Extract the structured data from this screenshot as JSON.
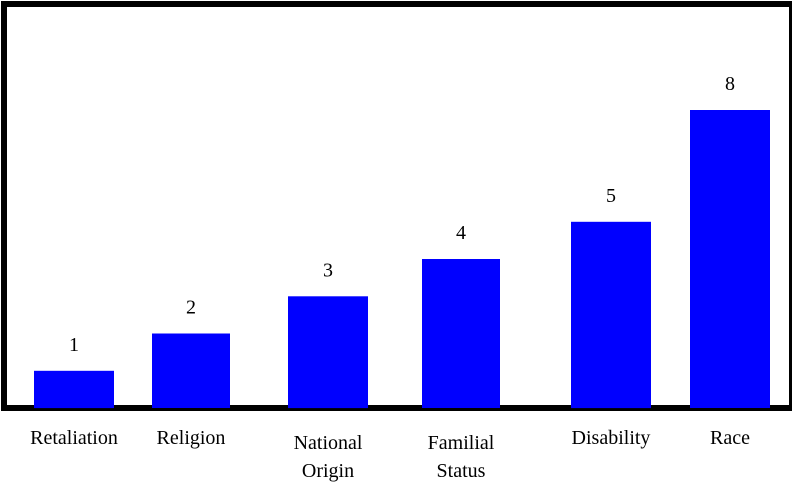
{
  "chart_data": {
    "type": "bar",
    "title": "",
    "xlabel": "",
    "ylabel": "",
    "categories": [
      [
        "Retaliation"
      ],
      [
        "Religion"
      ],
      [
        "National",
        "Origin"
      ],
      [
        "Familial",
        "Status"
      ],
      [
        "Disability"
      ],
      [
        "Race"
      ]
    ],
    "values": [
      1,
      2,
      3,
      4,
      5,
      8
    ],
    "value_labels": [
      "1",
      "2",
      "3",
      "4",
      "5",
      "8"
    ],
    "ylim": [
      0,
      8
    ],
    "grid": false,
    "legend": "none",
    "colors": {
      "bar": "#0000ff",
      "axis": "#000000",
      "background": "#ffffff"
    }
  }
}
